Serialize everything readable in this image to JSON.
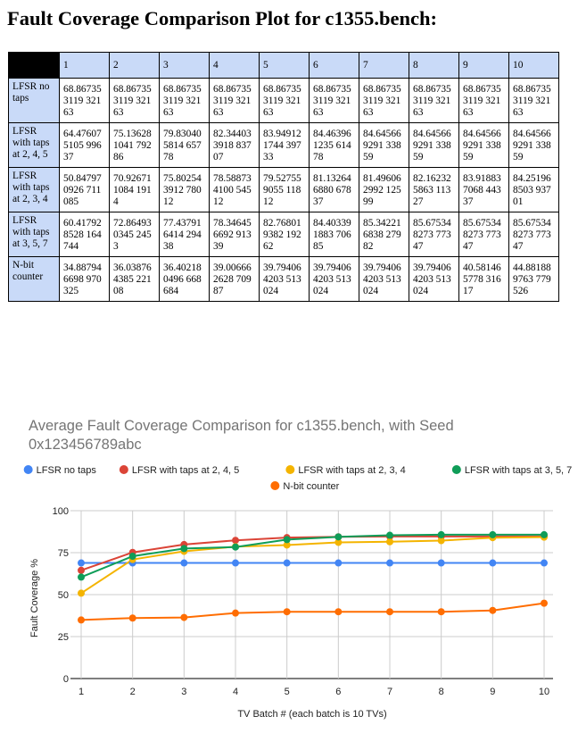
{
  "heading": "Fault Coverage Comparison Plot for c1355.bench:",
  "table": {
    "columns": [
      "1",
      "2",
      "3",
      "4",
      "5",
      "6",
      "7",
      "8",
      "9",
      "10"
    ],
    "rows": [
      {
        "label": "LFSR no taps",
        "cells": [
          "68.867353119 32163",
          "68.867353119 32163",
          "68.867353119 32163",
          "68.867353119 32163",
          "68.867353119 32163",
          "68.867353119 32163",
          "68.867353119 32163",
          "68.867353119 32163",
          "68.867353119 32163",
          "68.867353119 32163"
        ]
      },
      {
        "label": "LFSR with taps at 2, 4, 5",
        "cells": [
          "64.476075105 99637",
          "75.136281041 79286",
          "79.830405814 65778",
          "82.344033918 83707",
          "83.949121744 39733",
          "84.463961235 61478",
          "84.645669291 33859",
          "84.645669291 33859",
          "84.645669291 33859",
          "84.645669291 33859"
        ]
      },
      {
        "label": "LFSR with taps at 2, 3, 4",
        "cells": [
          "50.847970926 711085",
          "70.926711084 1914",
          "75.802543912 78012",
          "78.588734100 54512",
          "79.527559055 11812",
          "81.132646880 67837",
          "81.496062992 12599",
          "82.162325863 11327",
          "83.918837068 44337",
          "84.251968503 93701"
        ]
      },
      {
        "label": "LFSR with taps at 3, 5, 7",
        "cells": [
          "60.417928528 164744",
          "72.864930345 2453",
          "77.437916414 29438",
          "78.346456692 91339",
          "82.768019382 19262",
          "84.403391883 70685",
          "85.342216838 27982",
          "85.675348273 77347",
          "85.675348273 77347",
          "85.675348273 77347"
        ]
      },
      {
        "label": "N-bit counter",
        "cells": [
          "34.887946698 970325",
          "36.038764385 22108",
          "36.402180496 668684",
          "39.006662628 70987",
          "39.794064203 513024",
          "39.794064203 513024",
          "39.794064203 513024",
          "39.794064203 513024",
          "40.581465778 31617",
          "44.881889763 779526"
        ]
      }
    ]
  },
  "chart_data": {
    "type": "line",
    "title": "Average Fault Coverage Comparison for c1355.bench, with Seed 0x123456789abc",
    "xlabel": "TV Batch # (each batch is 10 TVs)",
    "ylabel": "Fault Coverage %",
    "x": [
      1,
      2,
      3,
      4,
      5,
      6,
      7,
      8,
      9,
      10
    ],
    "ylim": [
      0,
      100
    ],
    "yticks": [
      0,
      25,
      50,
      75,
      100
    ],
    "grid": true,
    "legend": "top",
    "series": [
      {
        "name": "LFSR no taps",
        "color": "#4285f4",
        "values": [
          68.87,
          68.87,
          68.87,
          68.87,
          68.87,
          68.87,
          68.87,
          68.87,
          68.87,
          68.87
        ]
      },
      {
        "name": "LFSR with taps at 2, 4, 5",
        "color": "#db4437",
        "values": [
          64.48,
          75.14,
          79.83,
          82.34,
          83.95,
          84.46,
          84.65,
          84.65,
          84.65,
          84.65
        ]
      },
      {
        "name": "LFSR with taps at 2, 3, 4",
        "color": "#f4b400",
        "values": [
          50.85,
          70.93,
          75.8,
          78.59,
          79.53,
          81.13,
          81.5,
          82.16,
          83.92,
          84.25
        ]
      },
      {
        "name": "LFSR with taps at 3, 5, 7",
        "color": "#0f9d58",
        "values": [
          60.42,
          72.86,
          77.44,
          78.35,
          82.77,
          84.4,
          85.34,
          85.68,
          85.68,
          85.68
        ]
      },
      {
        "name": "N-bit counter",
        "color": "#ff6d01",
        "values": [
          34.89,
          36.04,
          36.4,
          39.01,
          39.79,
          39.79,
          39.79,
          39.79,
          40.58,
          44.88
        ]
      }
    ]
  }
}
